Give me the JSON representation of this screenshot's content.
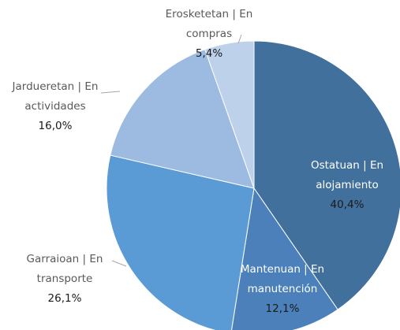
{
  "chart_data": {
    "type": "pie",
    "categories": [
      "Ostatuan | En alojamiento",
      "Mantenuan | En manutención",
      "Garraioan | En transporte",
      "Jardueretan | En actividades",
      "Erosketetan | En compras"
    ],
    "values": [
      40.4,
      12.1,
      26.1,
      16.0,
      5.4
    ],
    "value_labels": [
      "40,4%",
      "12,1%",
      "26,1%",
      "16,0%",
      "5,4%"
    ],
    "colors": [
      "#41709c",
      "#4b80ba",
      "#5b9bd5",
      "#9dbbe1",
      "#bed1eb"
    ]
  }
}
